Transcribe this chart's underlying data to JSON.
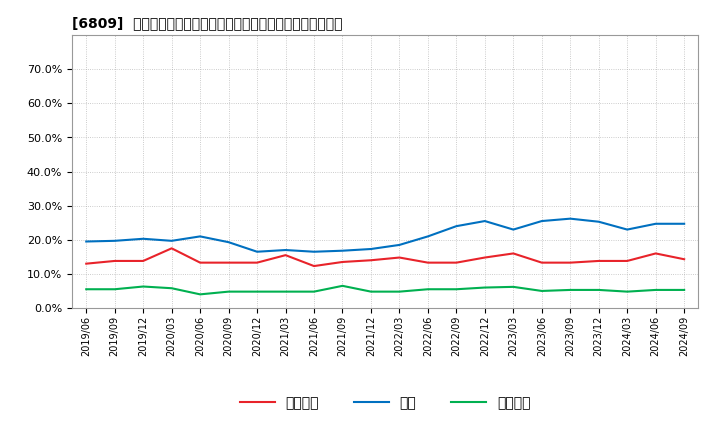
{
  "title": "[6809]  売上債権、在庫、買入債務の総資産に対する比率の推移",
  "x_labels": [
    "2019/06",
    "2019/09",
    "2019/12",
    "2020/03",
    "2020/06",
    "2020/09",
    "2020/12",
    "2021/03",
    "2021/06",
    "2021/09",
    "2021/12",
    "2022/03",
    "2022/06",
    "2022/09",
    "2022/12",
    "2023/03",
    "2023/06",
    "2023/09",
    "2023/12",
    "2024/03",
    "2024/06",
    "2024/09"
  ],
  "urikake": [
    0.13,
    0.138,
    0.138,
    0.175,
    0.133,
    0.133,
    0.133,
    0.155,
    0.123,
    0.135,
    0.14,
    0.148,
    0.133,
    0.133,
    0.148,
    0.16,
    0.133,
    0.133,
    0.138,
    0.138,
    0.16,
    0.143
  ],
  "zaiko": [
    0.195,
    0.197,
    0.203,
    0.197,
    0.21,
    0.193,
    0.165,
    0.17,
    0.165,
    0.168,
    0.173,
    0.185,
    0.21,
    0.24,
    0.255,
    0.23,
    0.255,
    0.262,
    0.253,
    0.23,
    0.247,
    0.247
  ],
  "kainyu": [
    0.055,
    0.055,
    0.063,
    0.058,
    0.04,
    0.048,
    0.048,
    0.048,
    0.048,
    0.065,
    0.048,
    0.048,
    0.055,
    0.055,
    0.06,
    0.062,
    0.05,
    0.053,
    0.053,
    0.048,
    0.053,
    0.053
  ],
  "urikake_color": "#e8232a",
  "zaiko_color": "#0070c0",
  "kainyu_color": "#00b050",
  "background_color": "#ffffff",
  "plot_bg_color": "#ffffff",
  "grid_color": "#aaaaaa",
  "ylim": [
    0.0,
    0.8
  ],
  "yticks": [
    0.0,
    0.1,
    0.2,
    0.3,
    0.4,
    0.5,
    0.6,
    0.7
  ],
  "legend_urikake": "売上債権",
  "legend_zaiko": "在庫",
  "legend_kainyu": "買入債務"
}
